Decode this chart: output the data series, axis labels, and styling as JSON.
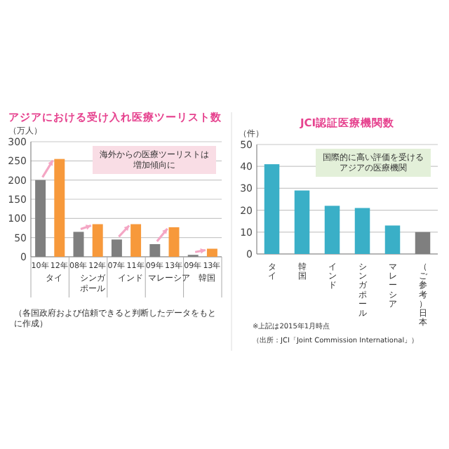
{
  "chart_data": [
    {
      "type": "bar",
      "title": "アジアにおける受け入れ医療ツーリスト数",
      "ylabel": "（万人）",
      "categories": [
        "10年",
        "12年",
        "08年",
        "12年",
        "07年",
        "11年",
        "09年",
        "13年",
        "09年",
        "13年"
      ],
      "values": [
        200,
        255,
        65,
        85,
        45,
        85,
        33,
        77,
        5,
        21
      ],
      "colors": [
        "#7f7f7f",
        "#f7993b",
        "#7f7f7f",
        "#f7993b",
        "#7f7f7f",
        "#f7993b",
        "#7f7f7f",
        "#f7993b",
        "#7f7f7f",
        "#f7993b"
      ],
      "ylim": [
        0,
        300
      ],
      "yticks": [
        0,
        50,
        100,
        150,
        200,
        250,
        300
      ],
      "grid": "y",
      "annotations": [
        "海外からの医療ツーリストは増加傾向に",
        "タイ",
        "シンガポール",
        "インド",
        "マレーシア",
        "韓国",
        "（各国政府および信頼できると判断したデータをもとに作成）"
      ]
    },
    {
      "type": "bar",
      "title": "JCI認証医療機関数",
      "ylabel": "（件）",
      "categories": [
        "タイ",
        "韓国",
        "インド",
        "シンガポール",
        "マレーシア",
        "（ご参考）日本"
      ],
      "values": [
        41,
        29,
        22,
        21,
        13,
        10
      ],
      "colors": [
        "#3aafc7",
        "#3aafc7",
        "#3aafc7",
        "#3aafc7",
        "#3aafc7",
        "#7f7f7f"
      ],
      "ylim": [
        0,
        50
      ],
      "yticks": [
        0,
        10,
        20,
        30,
        40,
        50
      ],
      "grid": "y",
      "annotations": [
        "国際的に高い評価を受けるアジアの医療機関",
        "※上記は2015年1月時点",
        "（出所：JCI「Joint Commission International」）"
      ]
    }
  ]
}
